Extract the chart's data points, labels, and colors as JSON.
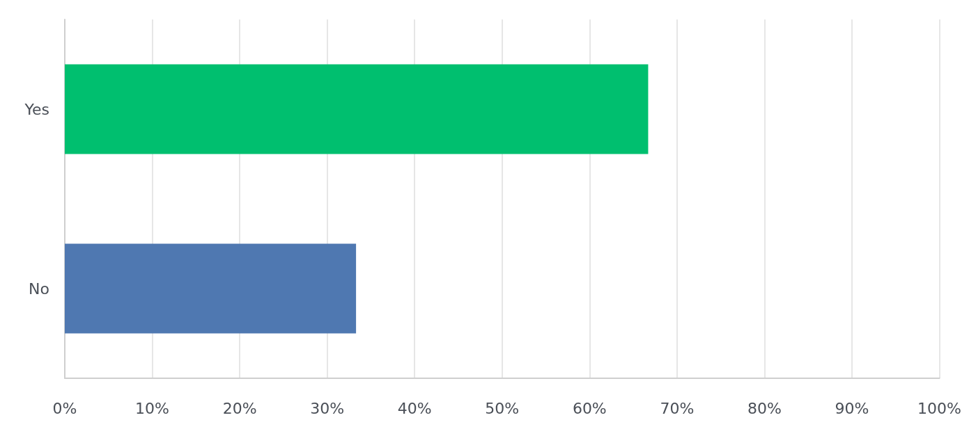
{
  "chart_data": {
    "type": "bar",
    "orientation": "horizontal",
    "categories": [
      "Yes",
      "No"
    ],
    "values": [
      66.7,
      33.3
    ],
    "colors": [
      "#00bf6f",
      "#4f78b1"
    ],
    "xlim": [
      0,
      100
    ],
    "xticks": [
      {
        "value": 0,
        "label": "0%"
      },
      {
        "value": 10,
        "label": "10%"
      },
      {
        "value": 20,
        "label": "20%"
      },
      {
        "value": 30,
        "label": "30%"
      },
      {
        "value": 40,
        "label": "40%"
      },
      {
        "value": 50,
        "label": "50%"
      },
      {
        "value": 60,
        "label": "60%"
      },
      {
        "value": 70,
        "label": "70%"
      },
      {
        "value": 80,
        "label": "80%"
      },
      {
        "value": 90,
        "label": "90%"
      },
      {
        "value": 100,
        "label": "100%"
      }
    ],
    "grid": "x"
  }
}
